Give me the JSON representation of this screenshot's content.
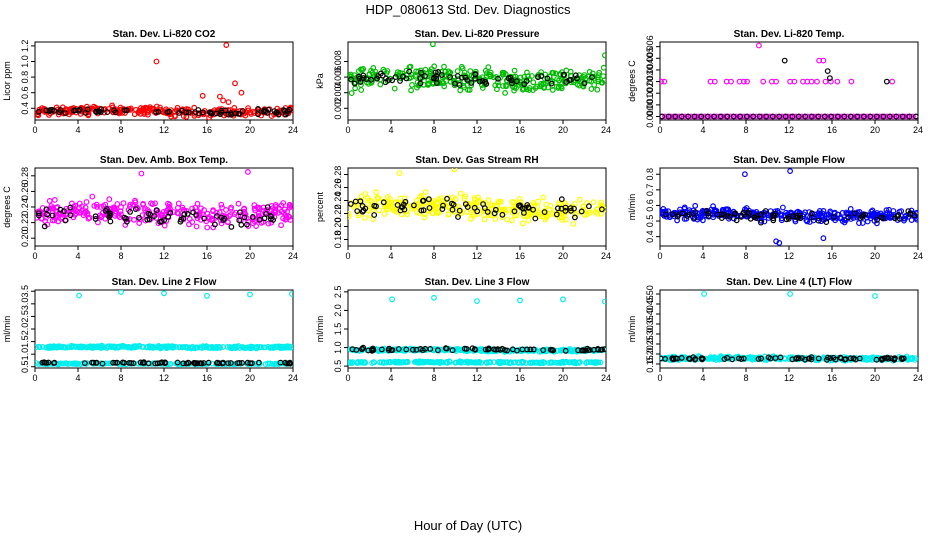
{
  "figure": {
    "title": "HDP_080613  Std. Dev. Diagnostics",
    "xlabel": "Hour of Day (UTC)"
  },
  "chart_data": [
    {
      "type": "scatter",
      "title": "Stan. Dev. Li-820 CO2",
      "ylabel": "Licor ppm",
      "xlim": [
        0,
        24
      ],
      "ylim": [
        0.25,
        1.25
      ],
      "xticks": [
        "0",
        "4",
        "8",
        "12",
        "16",
        "20",
        "24"
      ],
      "yticks": [
        "0.4",
        "0.6",
        "0.8",
        "1.0",
        "1.2"
      ],
      "series": [
        {
          "name": "primary",
          "color": "#ff0000",
          "band": {
            "center": 0.36,
            "spread": 0.08,
            "count": 260
          },
          "outliers": [
            [
              11.3,
              1.0
            ],
            [
              17.8,
              1.21
            ],
            [
              17.2,
              0.55
            ],
            [
              17.5,
              0.5
            ],
            [
              18.6,
              0.72
            ],
            [
              19.2,
              0.6
            ],
            [
              16.2,
              0.28
            ],
            [
              15.6,
              0.56
            ],
            [
              18.0,
              0.48
            ]
          ]
        },
        {
          "name": "reference",
          "color": "#000000",
          "band": {
            "center": 0.36,
            "spread": 0.05,
            "count": 70
          },
          "outliers": []
        }
      ]
    },
    {
      "type": "scatter",
      "title": "Stan. Dev. Li-820 Pressure",
      "ylabel": "kPa",
      "xlim": [
        0,
        24
      ],
      "ylim": [
        0.0005,
        0.0105
      ],
      "xticks": [
        "0",
        "4",
        "8",
        "12",
        "16",
        "20",
        "24"
      ],
      "yticks": [
        "0.002",
        "0.004",
        "0.006",
        "0.008"
      ],
      "series": [
        {
          "name": "primary",
          "color": "#00bb00",
          "band": {
            "center": 0.0057,
            "spread": 0.0022,
            "count": 320
          },
          "outliers": [
            [
              7.9,
              0.0102
            ],
            [
              23.9,
              0.0088
            ]
          ]
        },
        {
          "name": "reference",
          "color": "#000000",
          "band": {
            "center": 0.0058,
            "spread": 0.0013,
            "count": 70
          },
          "outliers": []
        }
      ]
    },
    {
      "type": "scatter",
      "title": "Stan. Dev. Li-820 Temp.",
      "ylabel": "degrees C",
      "xlim": [
        0,
        24
      ],
      "ylim": [
        -0.0003,
        0.0064
      ],
      "xticks": [
        "0",
        "4",
        "8",
        "12",
        "16",
        "20",
        "24"
      ],
      "yticks": [
        "0.000",
        "0.001",
        "0.002",
        "0.003",
        "0.004",
        "0.005",
        "0.006"
      ],
      "series": [
        {
          "name": "primary",
          "color": "#ff00ff",
          "points": [
            [
              0.1,
              0.003
            ],
            [
              0.4,
              0.003
            ],
            [
              4.7,
              0.003
            ],
            [
              5.1,
              0.003
            ],
            [
              6.2,
              0.003
            ],
            [
              6.6,
              0.003
            ],
            [
              7.4,
              0.003
            ],
            [
              7.8,
              0.003
            ],
            [
              8.1,
              0.003
            ],
            [
              9.2,
              0.0061
            ],
            [
              9.6,
              0.003
            ],
            [
              10.4,
              0.003
            ],
            [
              10.8,
              0.003
            ],
            [
              12.1,
              0.003
            ],
            [
              12.5,
              0.003
            ],
            [
              13.3,
              0.003
            ],
            [
              13.7,
              0.003
            ],
            [
              14.1,
              0.003
            ],
            [
              14.6,
              0.003
            ],
            [
              14.8,
              0.0048
            ],
            [
              15.2,
              0.0048
            ],
            [
              15.4,
              0.003
            ],
            [
              15.9,
              0.003
            ],
            [
              16.5,
              0.003
            ],
            [
              17.8,
              0.003
            ],
            [
              21.6,
              0.003
            ]
          ],
          "baseline": {
            "y": 0.0,
            "count": 90
          }
        },
        {
          "name": "reference",
          "color": "#000000",
          "points": [
            [
              11.6,
              0.0048
            ],
            [
              15.6,
              0.0039
            ],
            [
              15.8,
              0.0033
            ],
            [
              21.1,
              0.003
            ]
          ],
          "baseline": {
            "y": 0.0,
            "count": 40
          }
        }
      ]
    },
    {
      "type": "scatter",
      "title": "Stan. Dev. Amb. Box Temp.",
      "ylabel": "degrees C",
      "xlim": [
        0,
        24
      ],
      "ylim": [
        0.19,
        0.29
      ],
      "xticks": [
        "0",
        "4",
        "8",
        "12",
        "16",
        "20",
        "24"
      ],
      "yticks": [
        "0.20",
        "0.22",
        "0.24",
        "0.26",
        "0.28"
      ],
      "series": [
        {
          "name": "primary",
          "color": "#ff00ff",
          "band": {
            "center": 0.232,
            "spread": 0.022,
            "count": 300
          },
          "outliers": [
            [
              19.8,
              0.285
            ],
            [
              9.9,
              0.283
            ]
          ]
        },
        {
          "name": "reference",
          "color": "#000000",
          "band": {
            "center": 0.228,
            "spread": 0.018,
            "count": 65
          },
          "outliers": []
        }
      ]
    },
    {
      "type": "scatter",
      "title": "Stan. Dev. Gas Stream RH",
      "ylabel": "percent",
      "xlim": [
        0,
        24
      ],
      "ylim": [
        0.17,
        0.29
      ],
      "xticks": [
        "0",
        "4",
        "8",
        "12",
        "16",
        "20",
        "24"
      ],
      "yticks": [
        "0.18",
        "0.20",
        "0.22",
        "0.24",
        "0.26",
        "0.28"
      ],
      "series": [
        {
          "name": "primary",
          "color": "#ffff00",
          "band": {
            "center": 0.228,
            "spread": 0.025,
            "count": 320
          },
          "outliers": [
            [
              9.9,
              0.288
            ],
            [
              4.8,
              0.282
            ]
          ]
        },
        {
          "name": "reference",
          "color": "#000000",
          "band": {
            "center": 0.228,
            "spread": 0.02,
            "count": 70
          },
          "outliers": []
        }
      ]
    },
    {
      "type": "scatter",
      "title": "Stan. Dev. Sample Flow",
      "ylabel": "ml/min",
      "xlim": [
        0,
        24
      ],
      "ylim": [
        0.34,
        0.84
      ],
      "xticks": [
        "0",
        "4",
        "8",
        "12",
        "16",
        "20",
        "24"
      ],
      "yticks": [
        "0.4",
        "0.5",
        "0.6",
        "0.7",
        "0.8"
      ],
      "series": [
        {
          "name": "primary",
          "color": "#0000ff",
          "band": {
            "center": 0.54,
            "spread": 0.06,
            "count": 320
          },
          "outliers": [
            [
              7.9,
              0.8
            ],
            [
              12.1,
              0.82
            ],
            [
              10.8,
              0.37
            ],
            [
              11.1,
              0.36
            ],
            [
              15.2,
              0.39
            ]
          ]
        },
        {
          "name": "reference",
          "color": "#000000",
          "band": {
            "center": 0.53,
            "spread": 0.05,
            "count": 70
          },
          "outliers": []
        }
      ]
    },
    {
      "type": "scatter",
      "title": "Stan. Dev. Line 2 Flow",
      "ylabel": "ml/min",
      "xlim": [
        0,
        24
      ],
      "ylim": [
        0.45,
        3.55
      ],
      "xticks": [
        "0",
        "4",
        "8",
        "12",
        "16",
        "20",
        "24"
      ],
      "yticks": [
        "0.5",
        "1.0",
        "1.5",
        "2.0",
        "2.5",
        "3.0",
        "3.5"
      ],
      "series": [
        {
          "name": "primary",
          "color": "#00eeee",
          "band": {
            "center": 1.28,
            "spread": 0.06,
            "count": 300
          },
          "outliers": [
            [
              4.1,
              3.33
            ],
            [
              8.0,
              3.47
            ],
            [
              12.0,
              3.42
            ],
            [
              16.0,
              3.32
            ],
            [
              20.0,
              3.37
            ],
            [
              23.9,
              3.39
            ]
          ]
        },
        {
          "name": "primary-low",
          "color": "#00eeee",
          "band": {
            "center": 0.62,
            "spread": 0.03,
            "count": 200
          },
          "outliers": []
        },
        {
          "name": "reference",
          "color": "#000000",
          "band": {
            "center": 0.65,
            "spread": 0.04,
            "count": 70
          },
          "outliers": []
        }
      ]
    },
    {
      "type": "scatter",
      "title": "Stan. Dev. Line 3 Flow",
      "ylabel": "ml/min",
      "xlim": [
        0,
        24
      ],
      "ylim": [
        0.45,
        2.55
      ],
      "xticks": [
        "0",
        "4",
        "8",
        "12",
        "16",
        "20",
        "24"
      ],
      "yticks": [
        "0.5",
        "1.0",
        "1.5",
        "2.0",
        "2.5"
      ],
      "series": [
        {
          "name": "primary",
          "color": "#00eeee",
          "band": {
            "center": 0.93,
            "spread": 0.05,
            "count": 280
          },
          "outliers": [
            [
              4.1,
              2.3
            ],
            [
              8.0,
              2.34
            ],
            [
              12.0,
              2.25
            ],
            [
              16.0,
              2.27
            ],
            [
              20.0,
              2.3
            ],
            [
              23.9,
              2.24
            ]
          ]
        },
        {
          "name": "primary-low",
          "color": "#00eeee",
          "band": {
            "center": 0.6,
            "spread": 0.03,
            "count": 220
          },
          "outliers": []
        },
        {
          "name": "reference",
          "color": "#000000",
          "band": {
            "center": 0.95,
            "spread": 0.05,
            "count": 70
          },
          "outliers": []
        }
      ]
    },
    {
      "type": "scatter",
      "title": "Stan. Dev. Line 4 (LT) Flow",
      "ylabel": "ml/min",
      "xlim": [
        0,
        24
      ],
      "ylim": [
        0.13,
        0.52
      ],
      "xticks": [
        "0",
        "4",
        "8",
        "12",
        "16",
        "20",
        "24"
      ],
      "yticks": [
        "0.15",
        "0.20",
        "0.25",
        "0.30",
        "0.35",
        "0.40",
        "0.45",
        "0.50"
      ],
      "series": [
        {
          "name": "primary",
          "color": "#00eeee",
          "band": {
            "center": 0.178,
            "spread": 0.012,
            "count": 320
          },
          "outliers": [
            [
              4.1,
              0.5
            ],
            [
              12.1,
              0.5
            ],
            [
              20.0,
              0.49
            ]
          ]
        },
        {
          "name": "reference",
          "color": "#000000",
          "band": {
            "center": 0.178,
            "spread": 0.01,
            "count": 70
          },
          "outliers": []
        }
      ]
    }
  ]
}
